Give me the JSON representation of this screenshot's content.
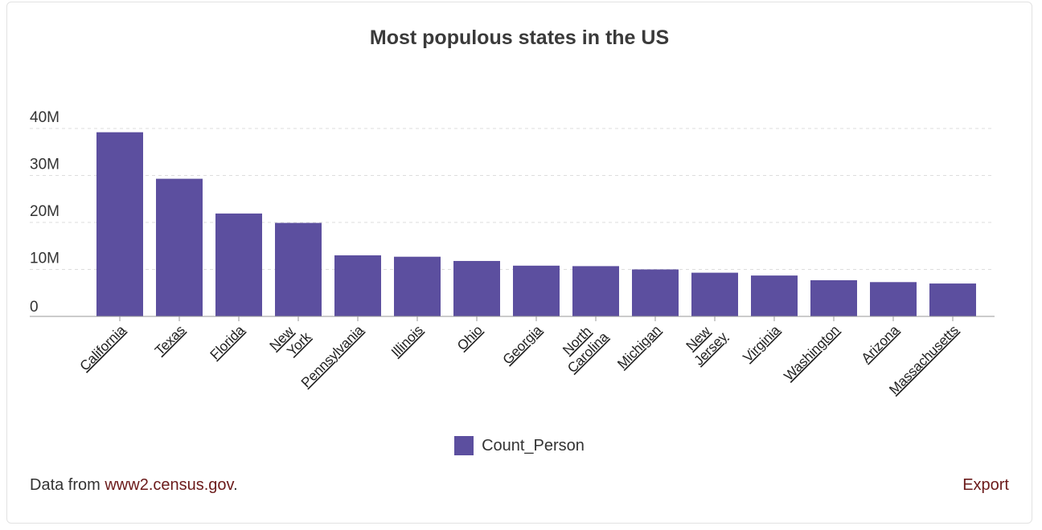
{
  "card": {
    "title": "Most populous states in the US",
    "source_prefix": "Data from ",
    "source_link": "www2.census.gov",
    "source_suffix": ".",
    "export_label": "Export"
  },
  "colors": {
    "bar": "#5c4f9f",
    "grid": "#dddddd",
    "axis": "#999999"
  },
  "chart_data": {
    "type": "bar",
    "title": "Most populous states in the US",
    "xlabel": "",
    "ylabel": "",
    "ylim": [
      0,
      40000000
    ],
    "y_ticks": [
      "0",
      "10M",
      "20M",
      "30M",
      "40M"
    ],
    "grid": true,
    "legend_position": "bottom-center",
    "categories": [
      "California",
      "Texas",
      "Florida",
      "New York",
      "Pennsylvania",
      "Illinois",
      "Ohio",
      "Georgia",
      "North Carolina",
      "Michigan",
      "New Jersey",
      "Virginia",
      "Washington",
      "Arizona",
      "Massachusetts"
    ],
    "series": [
      {
        "name": "Count_Person",
        "values": [
          39200000,
          29300000,
          21900000,
          19900000,
          13000000,
          12700000,
          11800000,
          10800000,
          10700000,
          10000000,
          9300000,
          8700000,
          7700000,
          7300000,
          7000000
        ]
      }
    ]
  }
}
